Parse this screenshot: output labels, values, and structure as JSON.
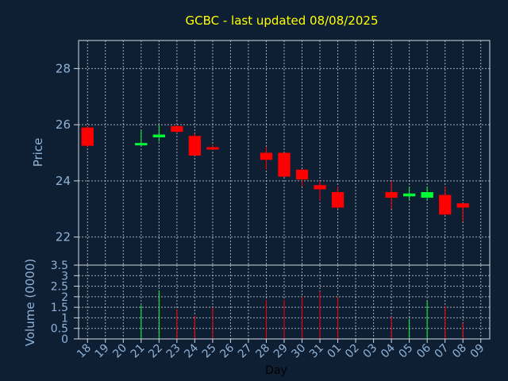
{
  "colors": {
    "background": "#0f1f33",
    "frame": "#d0d8e0",
    "grid": "#c8d0d8",
    "text": "#8fb3d9",
    "title": "#ffff00",
    "up": "#00ff33",
    "down": "#ff0000"
  },
  "chart_data": {
    "type": "candlestick",
    "title": "GCBC - last updated 08/08/2025",
    "xlabel": "Day",
    "ylabel": "Price",
    "volume_label": "Volume (0000)",
    "price_ylim": [
      21,
      29
    ],
    "price_ticks": [
      22,
      24,
      26,
      28
    ],
    "volume_ylim": [
      0,
      3.5
    ],
    "volume_ticks": [
      "0",
      "0.5",
      "1",
      "1.5",
      "2",
      "2.5",
      "3",
      "3.5"
    ],
    "x_ticks": [
      "18",
      "19",
      "20",
      "21",
      "22",
      "23",
      "24",
      "25",
      "26",
      "27",
      "28",
      "29",
      "30",
      "31",
      "01",
      "02",
      "03",
      "04",
      "05",
      "06",
      "07",
      "08",
      "09"
    ],
    "grid": true,
    "candles": [
      {
        "slot": 0,
        "open": 25.9,
        "high": 25.95,
        "low": 25.2,
        "close": 25.25,
        "volume": 0
      },
      {
        "slot": 3,
        "open": 25.3,
        "high": 25.8,
        "low": 25.3,
        "close": 25.35,
        "volume": 1.6
      },
      {
        "slot": 4,
        "open": 25.55,
        "high": 26.0,
        "low": 25.4,
        "close": 25.65,
        "volume": 2.3
      },
      {
        "slot": 5,
        "open": 25.95,
        "high": 26.0,
        "low": 25.7,
        "close": 25.75,
        "volume": 1.4
      },
      {
        "slot": 6,
        "open": 25.6,
        "high": 25.7,
        "low": 24.9,
        "close": 24.9,
        "volume": 1.1
      },
      {
        "slot": 7,
        "open": 25.2,
        "high": 25.3,
        "low": 25.1,
        "close": 25.15,
        "volume": 1.5
      },
      {
        "slot": 10,
        "open": 25.0,
        "high": 25.2,
        "low": 24.4,
        "close": 24.75,
        "volume": 1.85
      },
      {
        "slot": 11,
        "open": 25.0,
        "high": 25.0,
        "low": 24.15,
        "close": 24.15,
        "volume": 1.85
      },
      {
        "slot": 12,
        "open": 24.4,
        "high": 24.4,
        "low": 23.8,
        "close": 24.05,
        "volume": 2.0
      },
      {
        "slot": 13,
        "open": 23.85,
        "high": 24.0,
        "low": 23.3,
        "close": 23.7,
        "volume": 2.25
      },
      {
        "slot": 14,
        "open": 23.6,
        "high": 23.8,
        "low": 23.0,
        "close": 23.05,
        "volume": 2.0
      },
      {
        "slot": 17,
        "open": 23.6,
        "high": 24.0,
        "low": 23.0,
        "close": 23.4,
        "volume": 1.05
      },
      {
        "slot": 18,
        "open": 23.45,
        "high": 23.8,
        "low": 23.3,
        "close": 23.55,
        "volume": 0.95
      },
      {
        "slot": 19,
        "open": 23.4,
        "high": 23.8,
        "low": 23.3,
        "close": 23.6,
        "volume": 1.8
      },
      {
        "slot": 20,
        "open": 23.5,
        "high": 23.8,
        "low": 22.8,
        "close": 22.8,
        "volume": 1.55
      },
      {
        "slot": 21,
        "open": 23.2,
        "high": 23.2,
        "low": 22.55,
        "close": 23.05,
        "volume": 0.75
      }
    ]
  }
}
